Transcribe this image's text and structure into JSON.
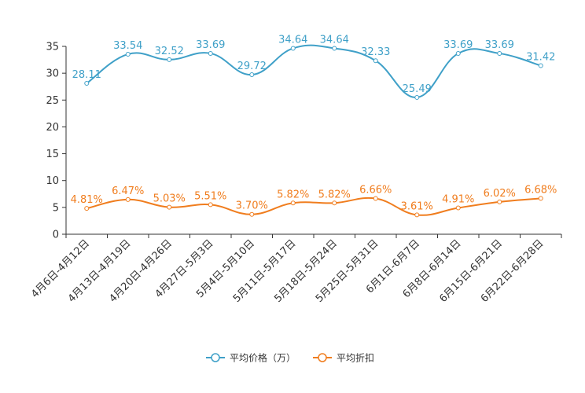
{
  "chart_data": {
    "type": "line",
    "categories": [
      "4月6日-4月12日",
      "4月13日-4月19日",
      "4月20日-4月26日",
      "4月27日-5月3日",
      "5月4日-5月10日",
      "5月11日-5月17日",
      "5月18日-5月24日",
      "5月25日-5月31日",
      "6月1日-6月7日",
      "6月8日-6月14日",
      "6月15日-6月21日",
      "6月22日-6月28日"
    ],
    "ylim": [
      0,
      35
    ],
    "yticks": [
      0,
      5,
      10,
      15,
      20,
      25,
      30,
      35
    ],
    "grid": false,
    "legend_position": "bottom-center",
    "series": [
      {
        "name": "平均价格（万）",
        "color": "#3fa0c8",
        "values": [
          28.11,
          33.54,
          32.52,
          33.69,
          29.72,
          34.64,
          34.64,
          32.33,
          25.49,
          33.69,
          33.69,
          31.42
        ],
        "labels": [
          "28.11",
          "33.54",
          "32.52",
          "33.69",
          "29.72",
          "34.64",
          "34.64",
          "32.33",
          "25.49",
          "33.69",
          "33.69",
          "31.42"
        ]
      },
      {
        "name": "平均折扣",
        "color": "#f07d1e",
        "values": [
          4.81,
          6.47,
          5.03,
          5.51,
          3.7,
          5.82,
          5.82,
          6.66,
          3.61,
          4.91,
          6.02,
          6.68
        ],
        "labels": [
          "4.81%",
          "6.47%",
          "5.03%",
          "5.51%",
          "3.70%",
          "5.82%",
          "5.82%",
          "6.66%",
          "3.61%",
          "4.91%",
          "6.02%",
          "6.68%"
        ]
      }
    ]
  }
}
